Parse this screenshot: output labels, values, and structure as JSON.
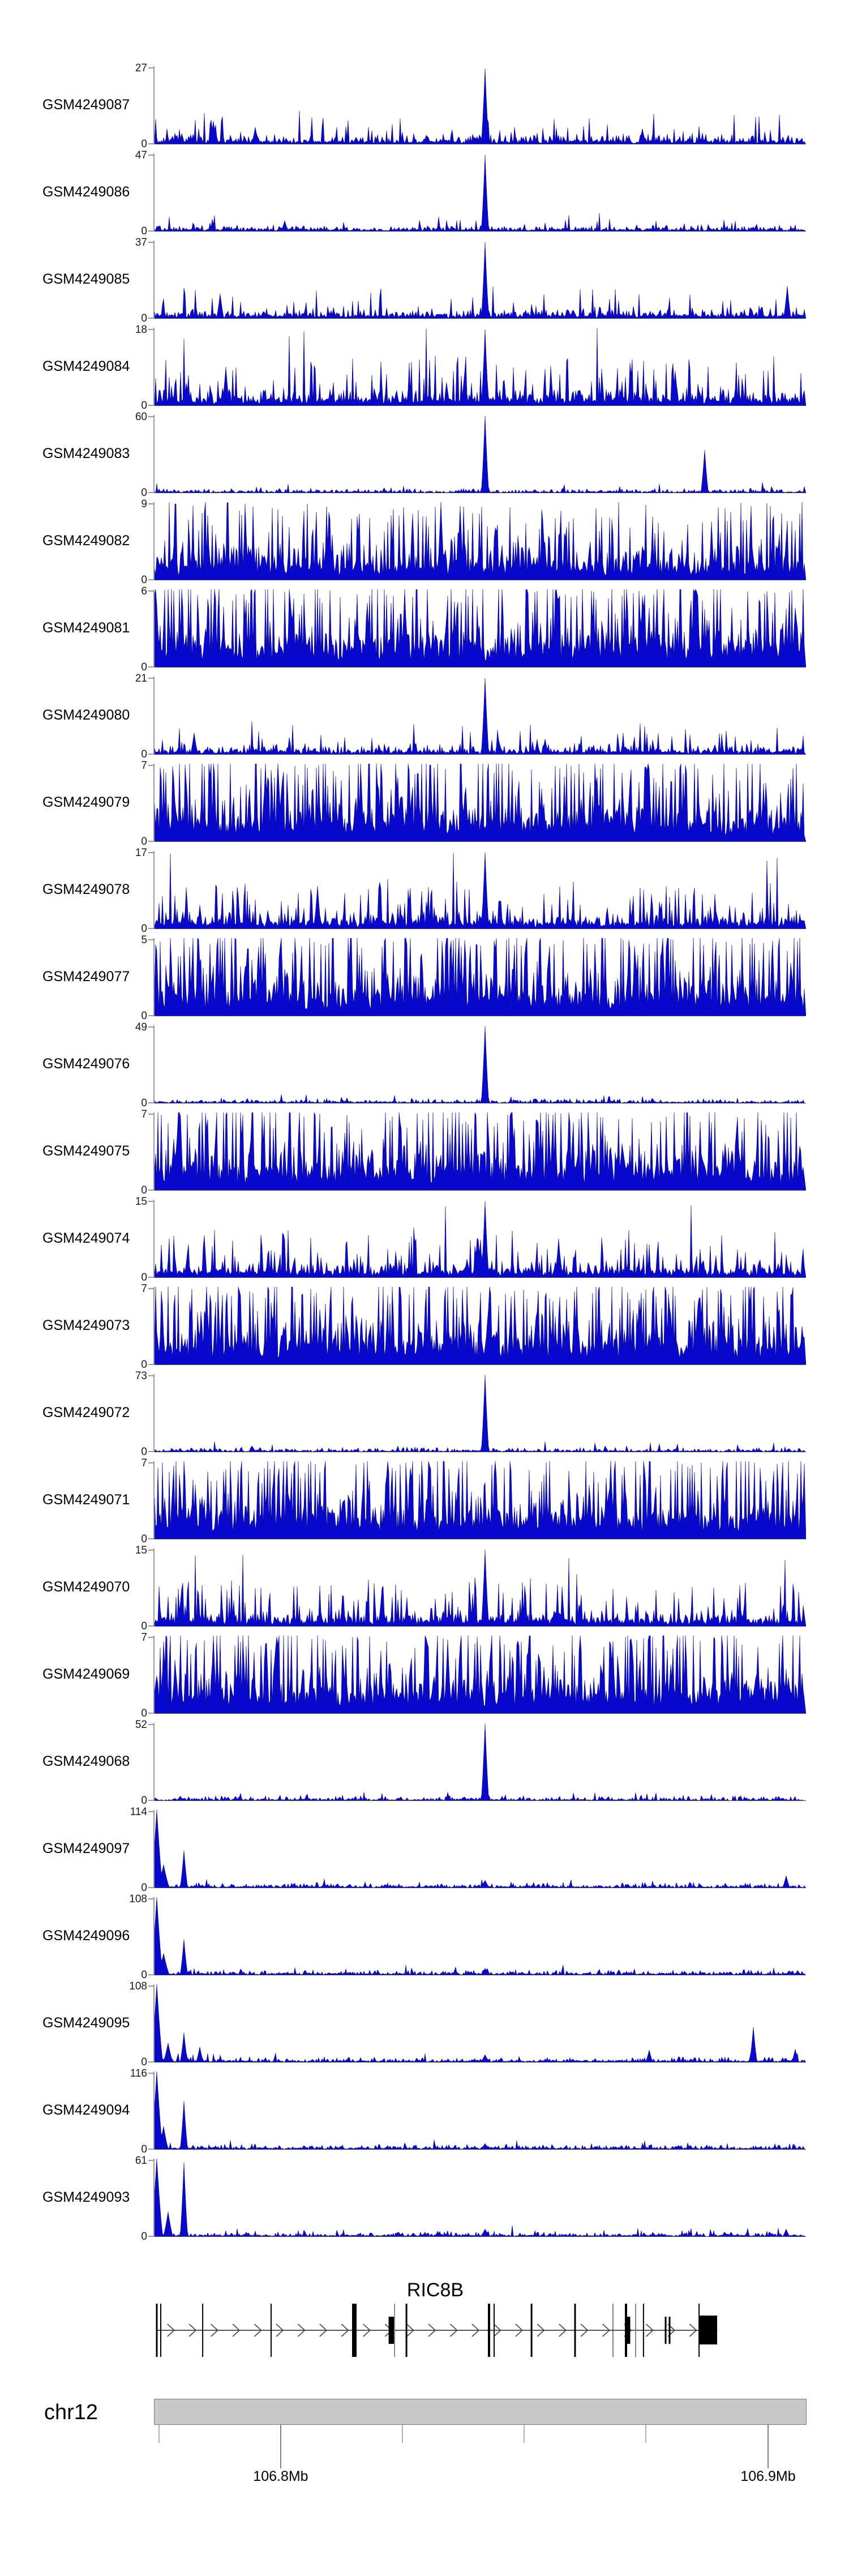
{
  "figure_title": "",
  "colors": {
    "signal_fill": "#0909cd",
    "signal_edge": "#000080",
    "axis_bracket": "#999999",
    "baseline": "#444444",
    "ideogram_fill": "#c9c9c9",
    "ideogram_border": "#7a7a7a",
    "exon": "#000000",
    "exon_gray": "#8a8a8a",
    "text": "#000000"
  },
  "chart_data": {
    "type": "area",
    "description": "Genome-browser style read-coverage tracks (blue histograms) for 25 GEO samples over the RIC8B locus on chr12, with gene model and genomic axis",
    "y_zero_label": "0",
    "legend_position": "none",
    "grid": false,
    "tracks": [
      {
        "label": "GSM4249087",
        "ymax": 27,
        "pattern": "sparse-mid",
        "peaks": [
          {
            "f": 0.508,
            "h": 0.97,
            "w": 4
          },
          {
            "f": 0.09,
            "h": 0.3,
            "w": 3
          },
          {
            "f": 0.155,
            "h": 0.22,
            "w": 3
          },
          {
            "f": 0.75,
            "h": 0.2,
            "w": 3
          }
        ]
      },
      {
        "label": "GSM4249086",
        "ymax": 47,
        "pattern": "sparse",
        "peaks": [
          {
            "f": 0.508,
            "h": 0.98,
            "w": 4
          },
          {
            "f": 0.2,
            "h": 0.14,
            "w": 3
          }
        ]
      },
      {
        "label": "GSM4249085",
        "ymax": 37,
        "pattern": "sparse-mid",
        "peaks": [
          {
            "f": 0.508,
            "h": 0.98,
            "w": 4
          },
          {
            "f": 0.1,
            "h": 0.32,
            "w": 3
          },
          {
            "f": 0.972,
            "h": 0.42,
            "w": 3
          }
        ]
      },
      {
        "label": "GSM4249084",
        "ymax": 18,
        "pattern": "mid-dense",
        "peaks": [
          {
            "f": 0.508,
            "h": 0.98,
            "w": 4
          },
          {
            "f": 0.11,
            "h": 0.5,
            "w": 3
          },
          {
            "f": 0.8,
            "h": 0.45,
            "w": 3
          }
        ]
      },
      {
        "label": "GSM4249083",
        "ymax": 60,
        "pattern": "very-sparse",
        "peaks": [
          {
            "f": 0.508,
            "h": 0.99,
            "w": 4
          },
          {
            "f": 0.845,
            "h": 0.55,
            "w": 3
          }
        ]
      },
      {
        "label": "GSM4249082",
        "ymax": 9,
        "pattern": "dense",
        "peaks": [
          {
            "f": 0.44,
            "h": 1,
            "w": 3
          },
          {
            "f": 0.47,
            "h": 0.95,
            "w": 3
          }
        ]
      },
      {
        "label": "GSM4249081",
        "ymax": 6,
        "pattern": "dense-hi",
        "peaks": [
          {
            "f": 0.385,
            "h": 1,
            "w": 3
          }
        ]
      },
      {
        "label": "GSM4249080",
        "ymax": 21,
        "pattern": "sparse-mid",
        "peaks": [
          {
            "f": 0.508,
            "h": 0.98,
            "w": 4
          },
          {
            "f": 0.06,
            "h": 0.28,
            "w": 3
          },
          {
            "f": 0.6,
            "h": 0.2,
            "w": 3
          }
        ]
      },
      {
        "label": "GSM4249079",
        "ymax": 7,
        "pattern": "dense-hi",
        "peaks": [
          {
            "f": 0.17,
            "h": 1,
            "w": 3
          }
        ]
      },
      {
        "label": "GSM4249078",
        "ymax": 17,
        "pattern": "mid-dense",
        "peaks": [
          {
            "f": 0.508,
            "h": 0.98,
            "w": 4
          },
          {
            "f": 0.25,
            "h": 0.55,
            "w": 3
          }
        ]
      },
      {
        "label": "GSM4249077",
        "ymax": 5,
        "pattern": "dense-hi",
        "peaks": [
          {
            "f": 0.3,
            "h": 1,
            "w": 3
          }
        ]
      },
      {
        "label": "GSM4249076",
        "ymax": 49,
        "pattern": "very-sparse",
        "peaks": [
          {
            "f": 0.508,
            "h": 0.99,
            "w": 4
          }
        ]
      },
      {
        "label": "GSM4249075",
        "ymax": 7,
        "pattern": "dense-hi",
        "peaks": [
          {
            "f": 0.15,
            "h": 1,
            "w": 3
          },
          {
            "f": 0.55,
            "h": 1,
            "w": 3
          }
        ]
      },
      {
        "label": "GSM4249074",
        "ymax": 15,
        "pattern": "mid-dense",
        "peaks": [
          {
            "f": 0.508,
            "h": 0.98,
            "w": 4
          },
          {
            "f": 0.62,
            "h": 0.5,
            "w": 3
          }
        ]
      },
      {
        "label": "GSM4249073",
        "ymax": 7,
        "pattern": "dense-hi",
        "peaks": [
          {
            "f": 0.08,
            "h": 1,
            "w": 3
          },
          {
            "f": 0.13,
            "h": 0.95,
            "w": 3
          }
        ]
      },
      {
        "label": "GSM4249072",
        "ymax": 73,
        "pattern": "very-sparse",
        "peaks": [
          {
            "f": 0.508,
            "h": 0.99,
            "w": 4
          },
          {
            "f": 0.15,
            "h": 0.08,
            "w": 3
          }
        ]
      },
      {
        "label": "GSM4249071",
        "ymax": 7,
        "pattern": "dense-hi",
        "peaks": [
          {
            "f": 0.7,
            "h": 1,
            "w": 3
          }
        ]
      },
      {
        "label": "GSM4249070",
        "ymax": 15,
        "pattern": "mid-dense",
        "peaks": [
          {
            "f": 0.508,
            "h": 0.98,
            "w": 4
          },
          {
            "f": 0.35,
            "h": 0.5,
            "w": 3
          }
        ]
      },
      {
        "label": "GSM4249069",
        "ymax": 7,
        "pattern": "dense-hi",
        "peaks": [
          {
            "f": 0.09,
            "h": 1,
            "w": 3
          },
          {
            "f": 0.45,
            "h": 0.95,
            "w": 3
          }
        ]
      },
      {
        "label": "GSM4249068",
        "ymax": 52,
        "pattern": "very-sparse",
        "peaks": [
          {
            "f": 0.508,
            "h": 0.99,
            "w": 4
          }
        ]
      },
      {
        "label": "GSM4249097",
        "ymax": 114,
        "pattern": "left-spike",
        "peaks": [
          {
            "f": 0.004,
            "h": 1,
            "w": 7
          },
          {
            "f": 0.014,
            "h": 0.3,
            "w": 8
          },
          {
            "f": 0.045,
            "h": 0.48,
            "w": 4
          },
          {
            "f": 0.508,
            "h": 0.1,
            "w": 6
          },
          {
            "f": 0.97,
            "h": 0.16,
            "w": 3
          }
        ]
      },
      {
        "label": "GSM4249096",
        "ymax": 108,
        "pattern": "left-spike",
        "peaks": [
          {
            "f": 0.004,
            "h": 1,
            "w": 7
          },
          {
            "f": 0.014,
            "h": 0.28,
            "w": 8
          },
          {
            "f": 0.045,
            "h": 0.46,
            "w": 4
          },
          {
            "f": 0.508,
            "h": 0.09,
            "w": 6
          }
        ]
      },
      {
        "label": "GSM4249095",
        "ymax": 108,
        "pattern": "left-spike",
        "peaks": [
          {
            "f": 0.004,
            "h": 1,
            "w": 7
          },
          {
            "f": 0.02,
            "h": 0.25,
            "w": 6
          },
          {
            "f": 0.045,
            "h": 0.38,
            "w": 4
          },
          {
            "f": 0.07,
            "h": 0.2,
            "w": 3
          },
          {
            "f": 0.508,
            "h": 0.1,
            "w": 6
          },
          {
            "f": 0.76,
            "h": 0.16,
            "w": 4
          },
          {
            "f": 0.92,
            "h": 0.45,
            "w": 3
          },
          {
            "f": 0.985,
            "h": 0.17,
            "w": 3
          }
        ]
      },
      {
        "label": "GSM4249094",
        "ymax": 116,
        "pattern": "left-spike",
        "peaks": [
          {
            "f": 0.004,
            "h": 1,
            "w": 7
          },
          {
            "f": 0.014,
            "h": 0.3,
            "w": 6
          },
          {
            "f": 0.045,
            "h": 0.62,
            "w": 4
          },
          {
            "f": 0.508,
            "h": 0.08,
            "w": 6
          }
        ]
      },
      {
        "label": "GSM4249093",
        "ymax": 61,
        "pattern": "left-spike",
        "peaks": [
          {
            "f": 0.004,
            "h": 1,
            "w": 7
          },
          {
            "f": 0.02,
            "h": 0.32,
            "w": 6
          },
          {
            "f": 0.045,
            "h": 0.95,
            "w": 4
          },
          {
            "f": 0.508,
            "h": 0.1,
            "w": 6
          },
          {
            "f": 0.97,
            "h": 0.1,
            "w": 3
          }
        ]
      }
    ],
    "gene_track": {
      "gene": "RIC8B",
      "strand": "+",
      "exons": [
        {
          "f": 0.0035,
          "w": 3,
          "k": "tall"
        },
        {
          "f": 0.0096,
          "w": 2,
          "k": "tall"
        },
        {
          "f": 0.0739,
          "w": 2,
          "k": "tall"
        },
        {
          "f": 0.179,
          "w": 2,
          "k": "tall"
        },
        {
          "f": 0.3067,
          "w": 8,
          "k": "tall"
        },
        {
          "f": 0.3641,
          "w": 11,
          "k": "mid"
        },
        {
          "f": 0.3685,
          "w": 2,
          "k": "gray"
        },
        {
          "f": 0.3867,
          "w": 3,
          "k": "tall"
        },
        {
          "f": 0.5135,
          "w": 4,
          "k": "tall"
        },
        {
          "f": 0.5213,
          "w": 2,
          "k": "tall"
        },
        {
          "f": 0.5787,
          "w": 3,
          "k": "tall"
        },
        {
          "f": 0.6455,
          "w": 3,
          "k": "tall"
        },
        {
          "f": 0.7037,
          "w": 1,
          "k": "tall"
        },
        {
          "f": 0.7237,
          "w": 4,
          "k": "tall"
        },
        {
          "f": 0.7272,
          "w": 7,
          "k": "mid"
        },
        {
          "f": 0.7385,
          "w": 2,
          "k": "gray"
        },
        {
          "f": 0.7506,
          "w": 2,
          "k": "tall"
        },
        {
          "f": 0.7845,
          "w": 3,
          "k": "mid"
        },
        {
          "f": 0.7906,
          "w": 3,
          "k": "mid"
        },
        {
          "f": 0.8359,
          "w": 2,
          "k": "tall"
        },
        {
          "f": 0.8497,
          "w": 32,
          "k": "midbig"
        }
      ],
      "line_start_f": 0.0035,
      "line_end_f": 0.864,
      "arrow_start_f": 0.025,
      "arrow_end_f": 0.832,
      "arrow_step_f": 0.0334
    },
    "genome_axis": {
      "chromosome": "chr12",
      "major_ticks": [
        {
          "f": 0.1937,
          "label": "106.8Mb"
        },
        {
          "f": 0.9418,
          "label": "106.9Mb"
        }
      ],
      "minor_ticks_f": [
        0.007,
        0.3805,
        0.5673,
        0.7541
      ]
    }
  }
}
